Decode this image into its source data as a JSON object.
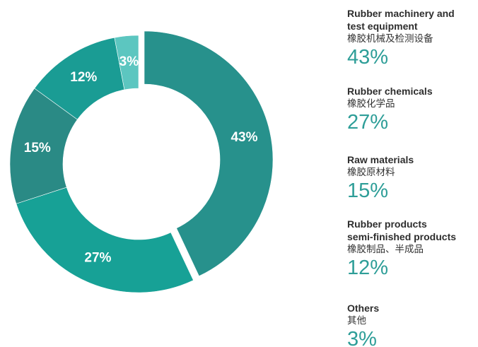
{
  "chart_data": {
    "type": "pie",
    "donut": true,
    "slices": [
      {
        "value": 43,
        "label": "43%",
        "legend_en": "Rubber machinery and test equipment",
        "legend_en_lines": [
          "Rubber machinery and",
          "test equipment"
        ],
        "legend_zh": "橡胶机械及检测设备",
        "legend_pct": "43%",
        "color": "#27918c",
        "exploded": true
      },
      {
        "value": 27,
        "label": "27%",
        "legend_en": "Rubber chemicals",
        "legend_en_lines": [
          "Rubber chemicals"
        ],
        "legend_zh": "橡胶化学品",
        "legend_pct": "27%",
        "color": "#17a196",
        "exploded": false
      },
      {
        "value": 15,
        "label": "15%",
        "legend_en": "Raw materials",
        "legend_en_lines": [
          "Raw materials"
        ],
        "legend_zh": "橡胶原材料",
        "legend_pct": "15%",
        "color": "#2a8a85",
        "exploded": false
      },
      {
        "value": 12,
        "label": "12%",
        "legend_en": "Rubber products semi-finished products",
        "legend_en_lines": [
          "Rubber products",
          "semi-finished products"
        ],
        "legend_zh": "橡胶制品、半成品",
        "legend_pct": "12%",
        "color": "#1a9c94",
        "exploded": false
      },
      {
        "value": 3,
        "label": "3%",
        "legend_en": "Others",
        "legend_en_lines": [
          "Others"
        ],
        "legend_zh": "其他",
        "legend_pct": "3%",
        "color": "#5cc6c0",
        "exploded": false
      }
    ],
    "legend_position": "right",
    "title": "",
    "accent_color": "#2e9e98"
  }
}
